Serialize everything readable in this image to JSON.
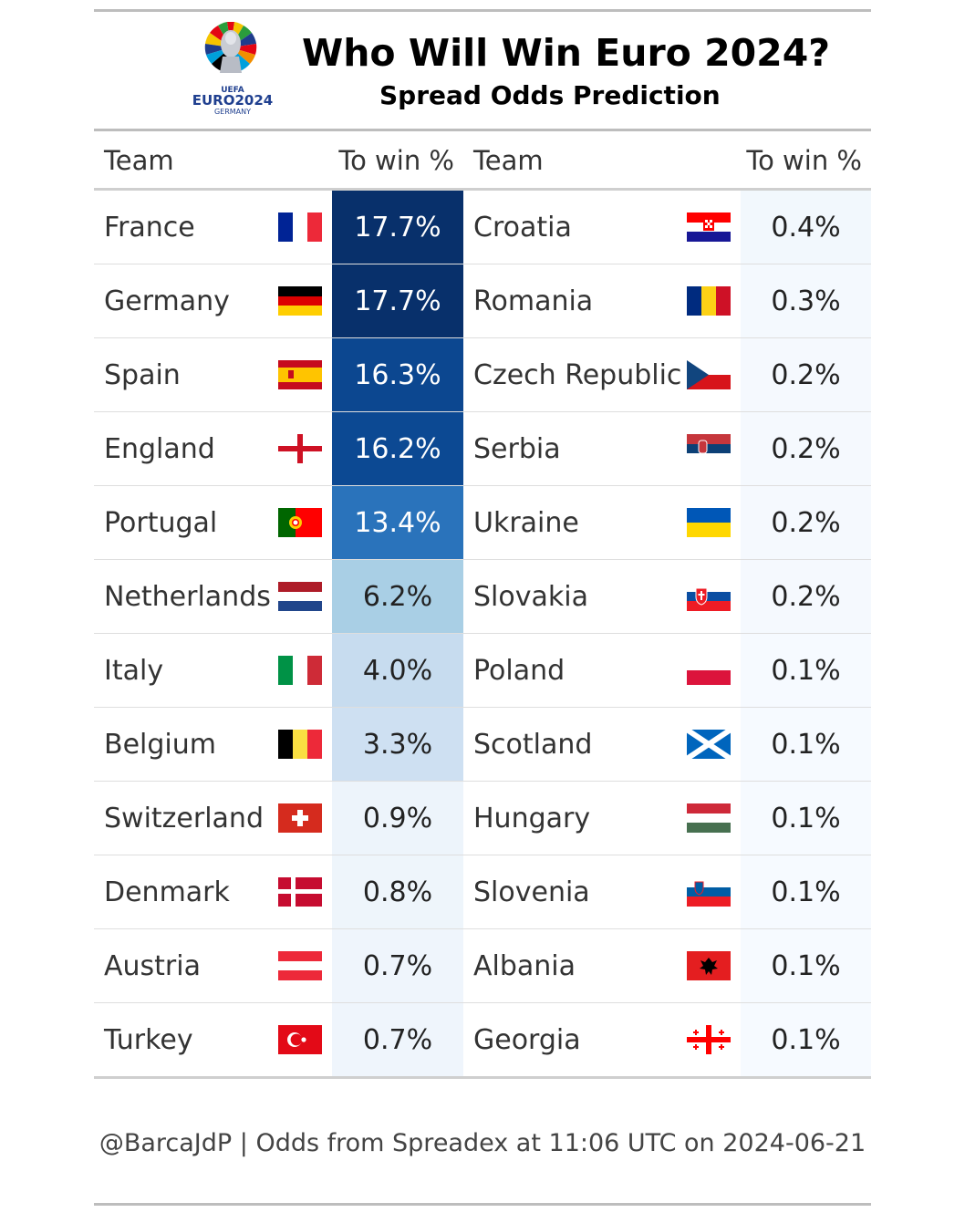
{
  "header": {
    "title": "Who Will Win Euro 2024?",
    "subtitle": "Spread Odds Prediction",
    "logo_text": "EURO2024",
    "logo_sub": "GERMANY",
    "logo_top": "UEFA"
  },
  "columns": [
    "Team",
    "To win %",
    "Team",
    "To win %"
  ],
  "chart_data": {
    "type": "table",
    "title": "Who Will Win Euro 2024?",
    "subtitle": "Spread Odds Prediction",
    "color_scale": "blues",
    "left": [
      {
        "team": "France",
        "flag": "france-flag",
        "pct": 17.7,
        "label": "17.7%"
      },
      {
        "team": "Germany",
        "flag": "germany-flag",
        "pct": 17.7,
        "label": "17.7%"
      },
      {
        "team": "Spain",
        "flag": "spain-flag",
        "pct": 16.3,
        "label": "16.3%"
      },
      {
        "team": "England",
        "flag": "england-flag",
        "pct": 16.2,
        "label": "16.2%"
      },
      {
        "team": "Portugal",
        "flag": "portugal-flag",
        "pct": 13.4,
        "label": "13.4%"
      },
      {
        "team": "Netherlands",
        "flag": "netherlands-flag",
        "pct": 6.2,
        "label": "6.2%"
      },
      {
        "team": "Italy",
        "flag": "italy-flag",
        "pct": 4.0,
        "label": "4.0%"
      },
      {
        "team": "Belgium",
        "flag": "belgium-flag",
        "pct": 3.3,
        "label": "3.3%"
      },
      {
        "team": "Switzerland",
        "flag": "switzerland-flag",
        "pct": 0.9,
        "label": "0.9%"
      },
      {
        "team": "Denmark",
        "flag": "denmark-flag",
        "pct": 0.8,
        "label": "0.8%"
      },
      {
        "team": "Austria",
        "flag": "austria-flag",
        "pct": 0.7,
        "label": "0.7%"
      },
      {
        "team": "Turkey",
        "flag": "turkey-flag",
        "pct": 0.7,
        "label": "0.7%"
      }
    ],
    "right": [
      {
        "team": "Croatia",
        "flag": "croatia-flag",
        "pct": 0.4,
        "label": "0.4%"
      },
      {
        "team": "Romania",
        "flag": "romania-flag",
        "pct": 0.3,
        "label": "0.3%"
      },
      {
        "team": "Czech Republic",
        "flag": "czech-republic-flag",
        "pct": 0.2,
        "label": "0.2%"
      },
      {
        "team": "Serbia",
        "flag": "serbia-flag",
        "pct": 0.2,
        "label": "0.2%"
      },
      {
        "team": "Ukraine",
        "flag": "ukraine-flag",
        "pct": 0.2,
        "label": "0.2%"
      },
      {
        "team": "Slovakia",
        "flag": "slovakia-flag",
        "pct": 0.2,
        "label": "0.2%"
      },
      {
        "team": "Poland",
        "flag": "poland-flag",
        "pct": 0.1,
        "label": "0.1%"
      },
      {
        "team": "Scotland",
        "flag": "scotland-flag",
        "pct": 0.1,
        "label": "0.1%"
      },
      {
        "team": "Hungary",
        "flag": "hungary-flag",
        "pct": 0.1,
        "label": "0.1%"
      },
      {
        "team": "Slovenia",
        "flag": "slovenia-flag",
        "pct": 0.1,
        "label": "0.1%"
      },
      {
        "team": "Albania",
        "flag": "albania-flag",
        "pct": 0.1,
        "label": "0.1%"
      },
      {
        "team": "Georgia",
        "flag": "georgia-flag",
        "pct": 0.1,
        "label": "0.1%"
      }
    ]
  },
  "footer": "@BarcaJdP | Odds from Spreadex at 11:06 UTC on 2024-06-21"
}
